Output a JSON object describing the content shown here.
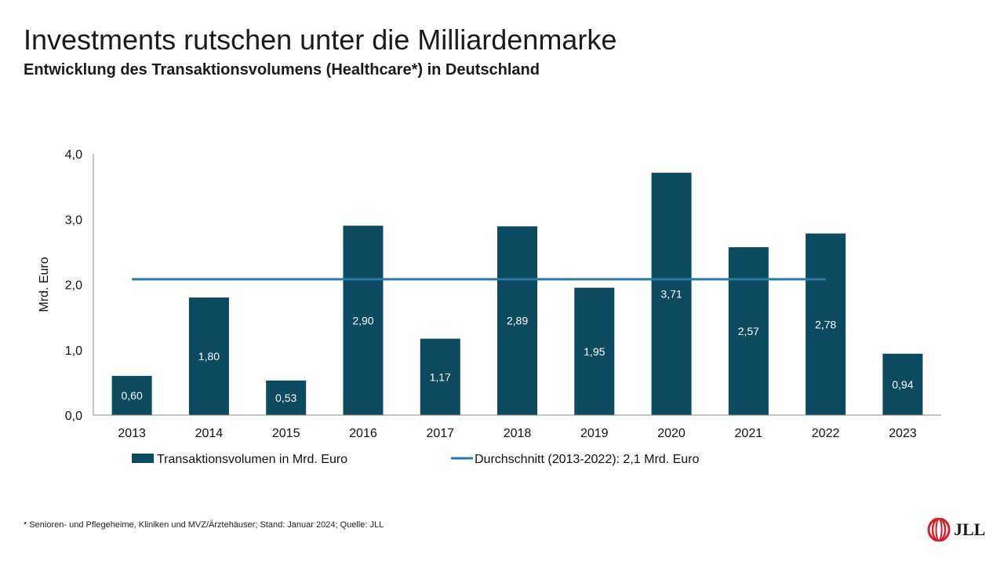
{
  "header": {
    "title": "Investments rutschen unter die Milliardenmarke",
    "subtitle": "Entwicklung des Transaktionsvolumens (Healthcare*) in Deutschland"
  },
  "chart_data": {
    "type": "bar",
    "categories": [
      "2013",
      "2014",
      "2015",
      "2016",
      "2017",
      "2018",
      "2019",
      "2020",
      "2021",
      "2022",
      "2023"
    ],
    "series": [
      {
        "name": "Transaktionsvolumen in Mrd. Euro",
        "type": "bar",
        "values": [
          0.6,
          1.8,
          0.53,
          2.9,
          1.17,
          2.89,
          1.95,
          3.71,
          2.57,
          2.78,
          0.94
        ],
        "labels": [
          "0,60",
          "1,80",
          "0,53",
          "2,90",
          "1,17",
          "2,89",
          "1,95",
          "3,71",
          "2,57",
          "2,78",
          "0,94"
        ],
        "color": "#0b4a60"
      },
      {
        "name": "Durchschnitt (2013-2022): 2,1 Mrd. Euro",
        "type": "line",
        "value": 2.08,
        "from": "2013",
        "to": "2022",
        "color": "#2a7aa8"
      }
    ],
    "ylabel": "Mrd. Euro",
    "ylim": [
      0,
      4
    ],
    "yticks": [
      0,
      1,
      2,
      3,
      4
    ],
    "ytick_labels": [
      "0,0",
      "1,0",
      "2,0",
      "3,0",
      "4,0"
    ],
    "grid": false,
    "legend": "bottom"
  },
  "footer": {
    "footnote": "* Senioren- und Pflegeheime, Kliniken und MVZ/Ärztehäuser;  Stand: Januar 2024; Quelle: JLL",
    "logo_text": "JLL",
    "logo_color": "#d71f2b"
  }
}
